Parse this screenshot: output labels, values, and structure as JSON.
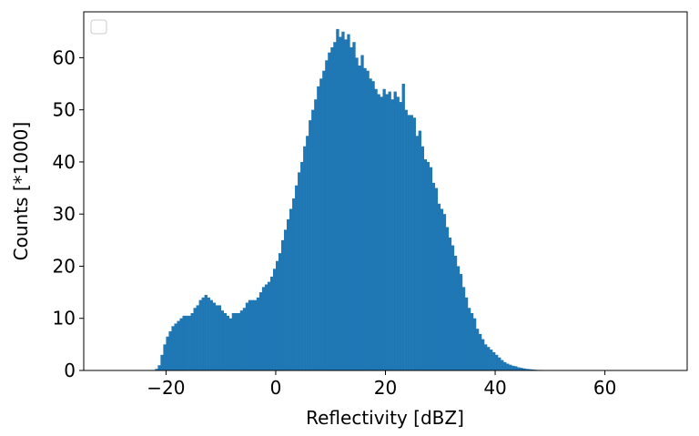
{
  "chart_data": {
    "type": "histogram",
    "xlabel": "Reflectivity [dBZ]",
    "ylabel": "Counts [*1000]",
    "color": "#1f77b4",
    "xlim": [
      -35,
      75
    ],
    "ylim": [
      0,
      68.8
    ],
    "xticks": [
      {
        "value": -20,
        "label": "−20"
      },
      0,
      20,
      40,
      60
    ],
    "yticks": [
      0,
      10,
      20,
      30,
      40,
      50,
      60
    ],
    "bins": [
      -22,
      -21.5,
      -21,
      -20.5,
      -20,
      -19.5,
      -19,
      -18.5,
      -18,
      -17.5,
      -17,
      -16.5,
      -16,
      -15.5,
      -15,
      -14.5,
      -14,
      -13.5,
      -13,
      -12.5,
      -12,
      -11.5,
      -11,
      -10.5,
      -10,
      -9.5,
      -9,
      -8.5,
      -8,
      -7.5,
      -7,
      -6.5,
      -6,
      -5.5,
      -5,
      -4.5,
      -4,
      -3.5,
      -3,
      -2.5,
      -2,
      -1.5,
      -1,
      -0.5,
      0,
      0.5,
      1,
      1.5,
      2,
      2.5,
      3,
      3.5,
      4,
      4.5,
      5,
      5.5,
      6,
      6.5,
      7,
      7.5,
      8,
      8.5,
      9,
      9.5,
      10,
      10.5,
      11,
      11.5,
      12,
      12.5,
      13,
      13.5,
      14,
      14.5,
      15,
      15.5,
      16,
      16.5,
      17,
      17.5,
      18,
      18.5,
      19,
      19.5,
      20,
      20.5,
      21,
      21.5,
      22,
      22.5,
      23,
      23.5,
      24,
      24.5,
      25,
      25.5,
      26,
      26.5,
      27,
      27.5,
      28,
      28.5,
      29,
      29.5,
      30,
      30.5,
      31,
      31.5,
      32,
      32.5,
      33,
      33.5,
      34,
      34.5,
      35,
      35.5,
      36,
      36.5,
      37,
      37.5,
      38,
      38.5,
      39,
      39.5,
      40,
      40.5,
      41,
      41.5,
      42,
      42.5,
      43,
      43.5,
      44,
      44.5,
      45,
      45.5,
      46,
      46.5,
      47,
      47.5,
      48,
      48.5,
      49,
      49.5,
      50
    ],
    "values": [
      0.3,
      1,
      3,
      5,
      6.5,
      7.5,
      8.5,
      9,
      9.5,
      10,
      10.5,
      10.5,
      10.5,
      11,
      12,
      12.5,
      13.5,
      14,
      14.5,
      14,
      13.5,
      13,
      12.5,
      12.5,
      11.5,
      11,
      10.5,
      10,
      11,
      11,
      11,
      11.5,
      12,
      13,
      13.5,
      13.5,
      13.5,
      14,
      15,
      16,
      16.5,
      17,
      18,
      19.5,
      21,
      22.5,
      25,
      27,
      29,
      31,
      33,
      35.5,
      38,
      40,
      43,
      45,
      48,
      50,
      52,
      54.5,
      56,
      57.5,
      59.5,
      61,
      62,
      63,
      65.5,
      64,
      65,
      63.5,
      64.5,
      62,
      63,
      60,
      58.5,
      60.5,
      58,
      57.5,
      56,
      55.5,
      54,
      53,
      52.5,
      54,
      53,
      53.5,
      52,
      53.5,
      52.5,
      51.5,
      55,
      50,
      49,
      49,
      48.5,
      45,
      46,
      43,
      40.5,
      40,
      39,
      36,
      35,
      32,
      31,
      30,
      27.5,
      25.5,
      24,
      22,
      20,
      18.5,
      16,
      14,
      12,
      11,
      10,
      8,
      7,
      6,
      5,
      4.5,
      4,
      3.5,
      3,
      2.5,
      2,
      1.6,
      1.3,
      1.1,
      0.9,
      0.8,
      0.6,
      0.5,
      0.4,
      0.3,
      0.25,
      0.2,
      0.15,
      0.1,
      0.1,
      0.05,
      0.05,
      0.02
    ]
  }
}
